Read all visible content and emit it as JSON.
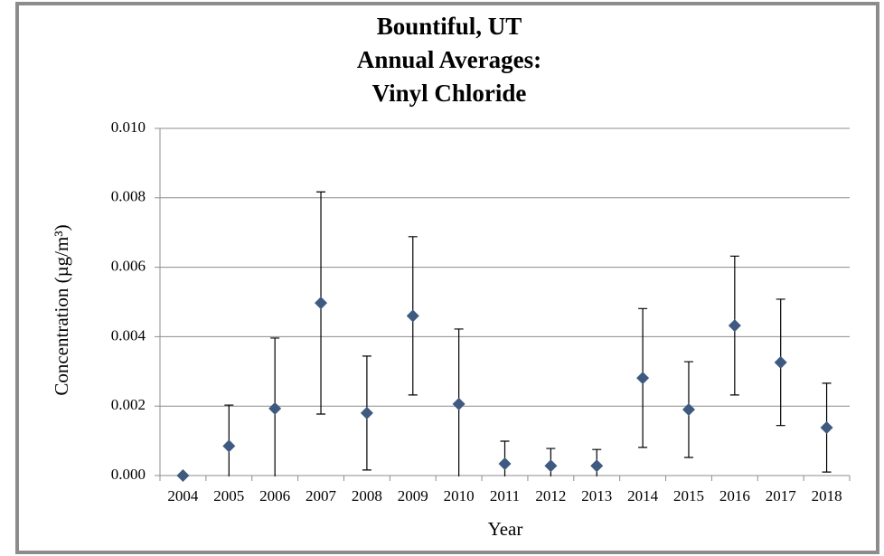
{
  "chart_data": {
    "type": "errorbar",
    "title": [
      "Bountiful, UT",
      "Annual Averages:",
      "Vinyl Chloride"
    ],
    "xlabel": "Year",
    "ylabel": "Concentration (µg/m³)",
    "categories": [
      "2004",
      "2005",
      "2006",
      "2007",
      "2008",
      "2009",
      "2010",
      "2011",
      "2012",
      "2013",
      "2014",
      "2015",
      "2016",
      "2017",
      "2018"
    ],
    "values": [
      0.0,
      0.00085,
      0.00193,
      0.00497,
      0.0018,
      0.0046,
      0.00206,
      0.00034,
      0.00028,
      0.00028,
      0.00281,
      0.0019,
      0.00432,
      0.00326,
      0.00138
    ],
    "errors": [
      0.0,
      0.00118,
      0.00203,
      0.0032,
      0.00164,
      0.00228,
      0.00216,
      0.00065,
      0.0005,
      0.00047,
      0.002,
      0.00138,
      0.002,
      0.00182,
      0.00128
    ],
    "color": "#3f5a80",
    "ylim": [
      0,
      0.01
    ],
    "yticks": [
      {
        "value": 0,
        "label": "0.000"
      },
      {
        "value": 0.002,
        "label": "0.002"
      },
      {
        "value": 0.004,
        "label": "0.004"
      },
      {
        "value": 0.006,
        "label": "0.006"
      },
      {
        "value": 0.008,
        "label": "0.008"
      },
      {
        "value": 0.01,
        "label": "0.010"
      }
    ],
    "grid": true
  }
}
